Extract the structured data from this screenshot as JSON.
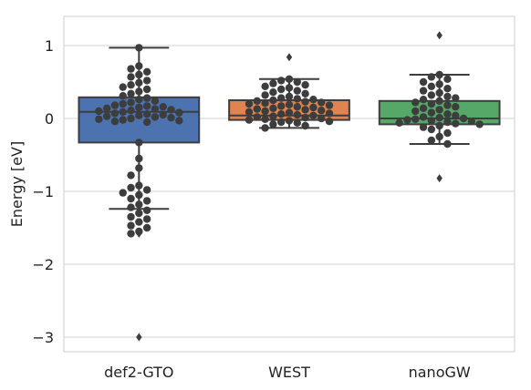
{
  "chart_data": {
    "type": "box",
    "title": "",
    "xlabel": "",
    "ylabel": "Energy [eV]",
    "ylim": [
      -3.2,
      1.4
    ],
    "yticks": [
      1,
      0,
      -1,
      -2,
      -3
    ],
    "ytick_labels": [
      "1",
      "0",
      "−1",
      "−2",
      "−3"
    ],
    "grid": "horizontal",
    "categories": [
      "def2-GTO",
      "WEST",
      "nanoGW"
    ],
    "series": [
      {
        "category": "def2-GTO",
        "color": "#4c72b0",
        "box": {
          "q1": -0.33,
          "median": 0.09,
          "q3": 0.29,
          "whisker_low": -1.24,
          "whisker_high": 0.97
        },
        "outliers": [
          -1.58,
          -3.0
        ],
        "points": [
          0.97,
          0.72,
          0.68,
          0.64,
          0.6,
          0.57,
          0.52,
          0.49,
          0.46,
          0.43,
          0.4,
          0.37,
          0.34,
          0.31,
          0.28,
          0.26,
          0.24,
          0.22,
          0.2,
          0.18,
          0.17,
          0.16,
          0.15,
          0.14,
          0.13,
          0.12,
          0.11,
          0.1,
          0.09,
          0.08,
          0.07,
          0.06,
          0.05,
          0.04,
          0.03,
          0.02,
          0.01,
          0.0,
          -0.01,
          -0.02,
          -0.03,
          -0.04,
          -0.05,
          -0.33,
          -0.55,
          -0.68,
          -0.78,
          -0.92,
          -0.95,
          -0.98,
          -1.02,
          -1.05,
          -1.1,
          -1.13,
          -1.18,
          -1.22,
          -1.26,
          -1.3,
          -1.35,
          -1.38,
          -1.42,
          -1.47,
          -1.5,
          -1.55,
          -1.58
        ]
      },
      {
        "category": "WEST",
        "color": "#dd8452",
        "box": {
          "q1": -0.02,
          "median": 0.04,
          "q3": 0.25,
          "whisker_low": -0.13,
          "whisker_high": 0.54
        },
        "outliers": [
          0.84
        ],
        "points": [
          0.54,
          0.52,
          0.5,
          0.48,
          0.46,
          0.44,
          0.42,
          0.4,
          0.38,
          0.36,
          0.34,
          0.32,
          0.3,
          0.28,
          0.27,
          0.26,
          0.25,
          0.24,
          0.23,
          0.22,
          0.21,
          0.2,
          0.19,
          0.18,
          0.17,
          0.16,
          0.15,
          0.14,
          0.13,
          0.12,
          0.11,
          0.1,
          0.09,
          0.08,
          0.07,
          0.06,
          0.05,
          0.04,
          0.03,
          0.02,
          0.01,
          0.0,
          -0.01,
          -0.02,
          -0.03,
          -0.04,
          -0.05,
          -0.06,
          -0.08,
          -0.1,
          -0.13
        ]
      },
      {
        "category": "nanoGW",
        "color": "#55a868",
        "box": {
          "q1": -0.08,
          "median": 0.0,
          "q3": 0.24,
          "whisker_low": -0.35,
          "whisker_high": 0.6
        },
        "outliers": [
          1.14,
          -0.82
        ],
        "points": [
          0.6,
          0.57,
          0.54,
          0.5,
          0.47,
          0.44,
          0.41,
          0.38,
          0.35,
          0.32,
          0.3,
          0.28,
          0.26,
          0.24,
          0.22,
          0.2,
          0.18,
          0.16,
          0.14,
          0.12,
          0.1,
          0.08,
          0.06,
          0.04,
          0.02,
          0.01,
          0.0,
          -0.01,
          -0.02,
          -0.03,
          -0.04,
          -0.05,
          -0.06,
          -0.07,
          -0.08,
          -0.1,
          -0.12,
          -0.15,
          -0.2,
          -0.25,
          -0.3,
          -0.35
        ]
      }
    ]
  }
}
